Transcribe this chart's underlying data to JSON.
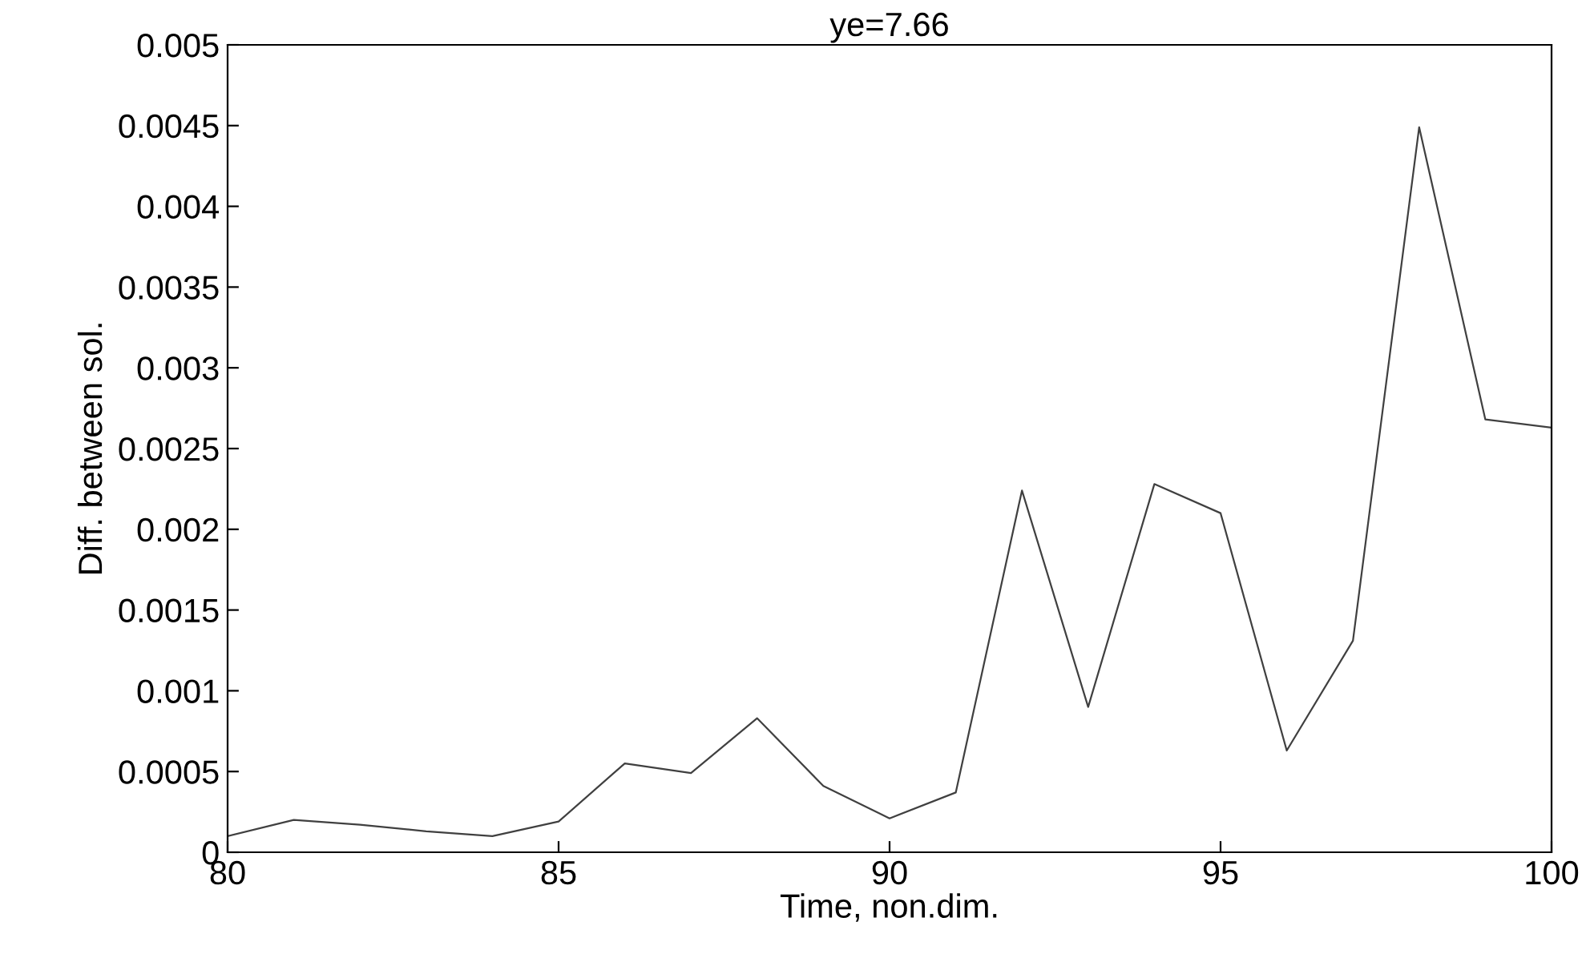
{
  "chart_data": {
    "type": "line",
    "title": "ye=7.66",
    "xlabel": "Time, non.dim.",
    "ylabel": "Diff. between sol.",
    "x": [
      80,
      81,
      82,
      83,
      84,
      85,
      86,
      87,
      88,
      89,
      90,
      91,
      92,
      93,
      94,
      95,
      96,
      97,
      98,
      99,
      100
    ],
    "series": [
      {
        "color": "#404040",
        "values": [
          0.0001,
          0.0002,
          0.00017,
          0.00013,
          0.0001,
          0.00019,
          0.00055,
          0.00049,
          0.00083,
          0.00041,
          0.00021,
          0.00037,
          0.00224,
          0.0009,
          0.00228,
          0.0021,
          0.00063,
          0.00131,
          0.00449,
          0.00268,
          0.00263
        ]
      }
    ],
    "xlim": [
      80,
      100
    ],
    "xticks": [
      80,
      85,
      90,
      95,
      100
    ],
    "ylim": [
      0,
      0.005
    ],
    "yticks": [
      0,
      0.0005,
      0.001,
      0.0015,
      0.002,
      0.0025,
      0.003,
      0.0035,
      0.004,
      0.0045,
      0.005
    ],
    "grid": false,
    "legend": false,
    "marker": "none",
    "line_style": "solid"
  }
}
